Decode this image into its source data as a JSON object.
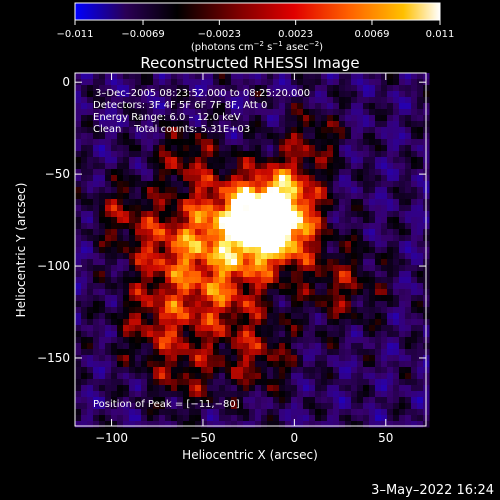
{
  "chart_data": {
    "type": "heatmap",
    "title": "Reconstructed RHESSI Image",
    "xlabel": "Heliocentric X (arcsec)",
    "ylabel": "Heliocentric Y (arcsec)",
    "xlim": [
      -120,
      72
    ],
    "ylim": [
      -187,
      5
    ],
    "x_ticks": [
      -100,
      -50,
      0,
      50
    ],
    "x_tick_labels": [
      "−100",
      "−50",
      "0",
      "50"
    ],
    "y_ticks": [
      0,
      -50,
      -100,
      -150
    ],
    "y_tick_labels": [
      "0",
      "−50",
      "−100",
      "−150"
    ],
    "colorbar": {
      "range": [
        -0.011,
        0.011
      ],
      "ticks": [
        -0.011,
        -0.0069,
        -0.0023,
        0.0023,
        0.0069,
        0.011
      ],
      "tick_labels": [
        "−0.011",
        "−0.0069",
        "−0.0023",
        "0.0023",
        "0.0069",
        "0.011"
      ],
      "unit_label_parts": [
        "(photons cm",
        "−2",
        " s",
        "−1",
        " asec",
        "−2",
        ")"
      ],
      "colors": [
        "#0000ff",
        "#2a0055",
        "#000000",
        "#c00000",
        "#ff5000",
        "#ffa000",
        "#ffff66",
        "#ffffff"
      ]
    },
    "annotations": {
      "time_range": "3–Dec–2005 08:23:52.000 to 08:25:20.000",
      "detectors": "Detectors: 3F 4F 5F 6F 7F 8F, Att 0",
      "energy": "Energy Range: 6.0 – 12.0 keV",
      "clean": "Clean    Total counts: 5.31E+03",
      "peak": "Position of Peak = [−11,−80]"
    },
    "peak_position": [
      -11,
      -80
    ],
    "grid": false
  },
  "footer": {
    "date_time": "3–May–2022 16:24"
  }
}
